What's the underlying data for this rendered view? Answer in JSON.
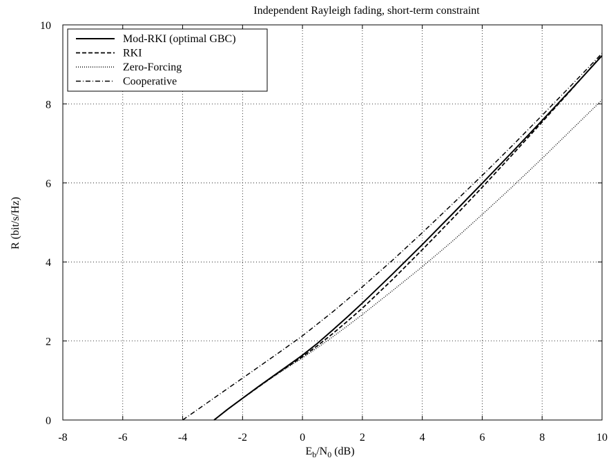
{
  "chart_data": {
    "type": "line",
    "title": "Independent Rayleigh fading, short-term constraint",
    "xlabel": {
      "main": "E",
      "sub1": "b",
      "mid": "/N",
      "sub2": "0",
      "unit": " (dB)"
    },
    "ylabel": "R  (bit/s/Hz)",
    "xlim": [
      -8,
      10
    ],
    "ylim": [
      0,
      10
    ],
    "xticks": [
      -8,
      -6,
      -4,
      -2,
      0,
      2,
      4,
      6,
      8,
      10
    ],
    "yticks": [
      0,
      2,
      4,
      6,
      8,
      10
    ],
    "grid": true,
    "legend_position": "top-left",
    "series": [
      {
        "name": "Mod-RKI (optimal GBC)",
        "style": "solid",
        "x": [
          -2.95,
          -2.5,
          -2,
          -1.5,
          -1,
          -0.5,
          0,
          0.5,
          1,
          1.5,
          2,
          3,
          4,
          5,
          6,
          7,
          8,
          9,
          10
        ],
        "y": [
          0,
          0.27,
          0.55,
          0.83,
          1.1,
          1.37,
          1.64,
          1.94,
          2.27,
          2.61,
          2.96,
          3.69,
          4.44,
          5.21,
          5.99,
          6.78,
          7.58,
          8.39,
          9.22
        ]
      },
      {
        "name": "RKI",
        "style": "dashed",
        "x": [
          -2.95,
          -2.5,
          -2,
          -1.5,
          -1,
          -0.5,
          0,
          0.5,
          1,
          1.5,
          2,
          3,
          4,
          5,
          6,
          7,
          8,
          9,
          10
        ],
        "y": [
          0,
          0.27,
          0.55,
          0.82,
          1.09,
          1.35,
          1.6,
          1.88,
          2.18,
          2.5,
          2.83,
          3.55,
          4.31,
          5.09,
          5.89,
          6.71,
          7.54,
          8.38,
          9.24
        ]
      },
      {
        "name": "Zero-Forcing",
        "style": "dotted",
        "x": [
          -2.95,
          -2.5,
          -2,
          -1.5,
          -1,
          -0.5,
          0,
          0.5,
          1,
          1.5,
          2,
          3,
          4,
          5,
          6,
          7,
          8,
          9,
          10
        ],
        "y": [
          0,
          0.27,
          0.55,
          0.82,
          1.08,
          1.33,
          1.57,
          1.83,
          2.1,
          2.38,
          2.67,
          3.27,
          3.88,
          4.52,
          5.2,
          5.9,
          6.62,
          7.36,
          8.1
        ]
      },
      {
        "name": "Cooperative",
        "style": "dashdot",
        "x": [
          -4,
          -3,
          -2,
          -1,
          0,
          1,
          2,
          3,
          4,
          5,
          6,
          7,
          8,
          9,
          10
        ],
        "y": [
          0,
          0.53,
          1.06,
          1.59,
          2.13,
          2.73,
          3.37,
          4.04,
          4.74,
          5.46,
          6.19,
          6.94,
          7.71,
          8.49,
          9.28
        ]
      }
    ]
  }
}
